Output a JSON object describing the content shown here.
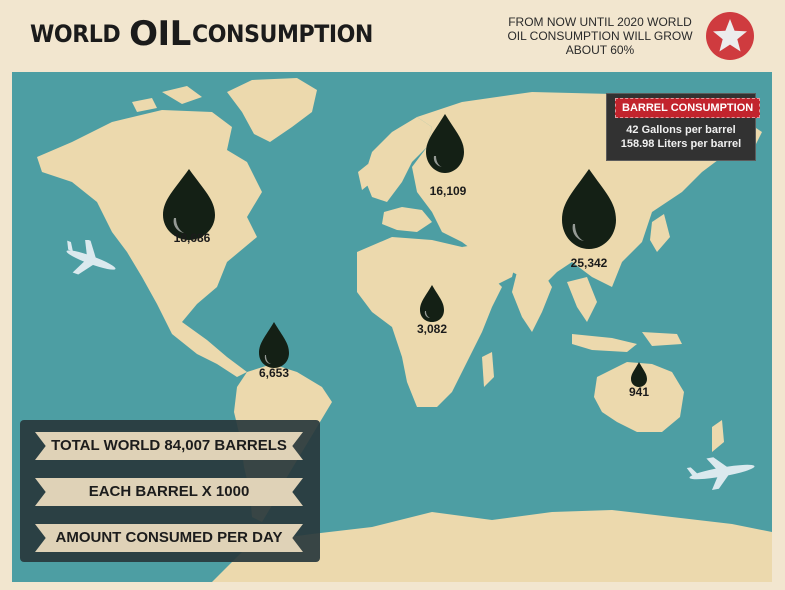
{
  "header": {
    "title_world": "WORLD",
    "title_oil": "OIL",
    "title_consumption": "CONSUMPTION",
    "forecast_line1": "FROM NOW UNTIL 2020 WORLD",
    "forecast_line2": "OIL CONSUMPTION WILL GROW",
    "forecast_line3": "ABOUT 60%",
    "badge_icon": "star-icon"
  },
  "barrel_info": {
    "title": "BARREL CONSUMPTION",
    "line1": "42 Gallons per barrel",
    "line2": "158.98 Liters per barrel"
  },
  "regions": [
    {
      "region": "North America",
      "value": "18,686"
    },
    {
      "region": "Europe/Russia",
      "value": "16,109"
    },
    {
      "region": "Asia",
      "value": "25,342"
    },
    {
      "region": "Africa",
      "value": "3,082"
    },
    {
      "region": "South America",
      "value": "6,653"
    },
    {
      "region": "Australia",
      "value": "941"
    }
  ],
  "stats": {
    "total": "TOTAL WORLD 84,007 BARRELS",
    "multiplier": "EACH BARREL X 1000",
    "unit": "AMOUNT CONSUMED PER DAY"
  },
  "colors": {
    "ocean": "#4d9ea3",
    "land": "#ecd9ad",
    "drop": "#142015",
    "accent": "#c2242d"
  },
  "icons": [
    "oil-drop-icon",
    "airplane-icon",
    "star-icon"
  ]
}
